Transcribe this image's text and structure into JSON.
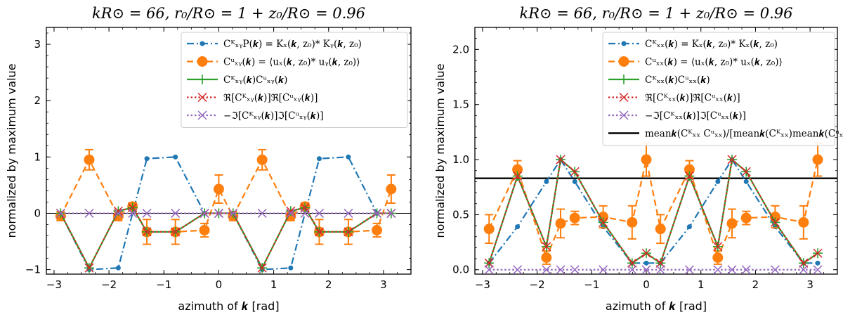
{
  "chart_data": [
    {
      "type": "line",
      "title": "kR⊙ = 66, r₀/R⊙ = 1 + z₀/R⊙ = 0.96",
      "xlabel": "azimuth of 𝒌 [rad]",
      "ylabel": "normalized by maximum value",
      "xlim": [
        -3.14,
        3.5
      ],
      "ylim": [
        -1.08,
        3.3
      ],
      "xticks": [
        -3,
        -2,
        -1,
        0,
        1,
        2,
        3
      ],
      "yticks": [
        -1,
        0,
        1,
        2,
        3
      ],
      "hline": 0,
      "legend": "top-right",
      "series": [
        {
          "name": "CᴷₓᵧP(𝒌) = Kₓ(𝒌, z₀)* Kᵧ(𝒌, z₀)",
          "color": "#1f77b4",
          "style": "dashdot",
          "marker": "dot",
          "x": [
            -2.88,
            -2.36,
            -1.83,
            -1.31,
            -0.79,
            -0.26,
            0.26,
            0.79,
            1.31,
            1.83,
            2.36,
            2.88
          ],
          "y": [
            0.0,
            -1.0,
            -0.97,
            0.97,
            1.0,
            0.0,
            0.0,
            -1.0,
            -0.97,
            0.97,
            1.0,
            0.0
          ]
        },
        {
          "name": "Cᵘₓᵧ(𝒌) = ⟨uₓ(𝒌, z₀)* uᵧ(𝒌, z₀)⟩",
          "color": "#ff7f0e",
          "style": "dashed",
          "marker": "bigdot",
          "x": [
            -2.88,
            -2.36,
            -1.83,
            -1.57,
            -1.31,
            -0.79,
            -0.26,
            0.0,
            0.26,
            0.79,
            1.31,
            1.57,
            1.83,
            2.36,
            2.88,
            3.14
          ],
          "y": [
            -0.05,
            0.95,
            -0.05,
            0.12,
            -0.33,
            -0.33,
            -0.3,
            0.43,
            -0.05,
            0.95,
            -0.05,
            0.12,
            -0.33,
            -0.33,
            -0.3,
            0.43
          ],
          "err": [
            0.08,
            0.18,
            0.08,
            0.07,
            0.22,
            0.22,
            0.12,
            0.25,
            0.08,
            0.18,
            0.08,
            0.07,
            0.22,
            0.22,
            0.12,
            0.25
          ]
        },
        {
          "name": "Cᴷₓᵧ(𝒌)Cᵘₓᵧ(𝒌)",
          "color": "#2ca02c",
          "style": "solid",
          "marker": "plus",
          "x": [
            -2.88,
            -2.36,
            -1.83,
            -1.57,
            -1.31,
            -0.79,
            -0.26,
            0.0,
            0.26,
            0.79,
            1.31,
            1.57,
            1.83,
            2.36,
            2.88,
            3.14
          ],
          "y": [
            0.0,
            -0.97,
            0.04,
            0.1,
            -0.33,
            -0.33,
            0.0,
            0.0,
            0.0,
            -0.97,
            0.04,
            0.1,
            -0.33,
            -0.33,
            0.0,
            0.0
          ]
        },
        {
          "name": "ℜ[Cᴷₓᵧ(𝒌)]ℜ[Cᵘₓᵧ(𝒌)]",
          "color": "#d62728",
          "style": "dotted",
          "marker": "x",
          "x": [
            -2.88,
            -2.36,
            -1.83,
            -1.57,
            -1.31,
            -0.79,
            -0.26,
            0.0,
            0.26,
            0.79,
            1.31,
            1.57,
            1.83,
            2.36,
            2.88,
            3.14
          ],
          "y": [
            0.0,
            -0.97,
            0.04,
            0.1,
            -0.33,
            -0.33,
            0.0,
            0.0,
            0.0,
            -0.97,
            0.04,
            0.1,
            -0.33,
            -0.33,
            0.0,
            0.0
          ]
        },
        {
          "name": "−ℑ[Cᴷₓᵧ(𝒌)]ℑ[Cᵘₓᵧ(𝒌)]",
          "color": "#9467bd",
          "style": "dotted",
          "marker": "x",
          "x": [
            -2.88,
            -2.36,
            -1.83,
            -1.57,
            -1.31,
            -0.79,
            -0.26,
            0.0,
            0.26,
            0.79,
            1.31,
            1.57,
            1.83,
            2.36,
            2.88,
            3.14
          ],
          "y": [
            0,
            0,
            0,
            0,
            0,
            0,
            0,
            0,
            0,
            0,
            0,
            0,
            0,
            0,
            0,
            0
          ]
        }
      ]
    },
    {
      "type": "line",
      "title": "kR⊙ = 66, r₀/R⊙ = 1 + z₀/R⊙ = 0.96",
      "xlabel": "azimuth of 𝒌 [rad]",
      "ylabel": "normalized by maximum value",
      "xlim": [
        -3.14,
        3.5
      ],
      "ylim": [
        -0.04,
        2.2
      ],
      "xticks": [
        -3,
        -2,
        -1,
        0,
        1,
        2,
        3
      ],
      "yticks": [
        0.0,
        0.5,
        1.0,
        1.5,
        2.0
      ],
      "hline": 0.83,
      "legend": "top-right",
      "series": [
        {
          "name": "Cᴷₓₓ(𝒌) = Kₓ(𝒌, z₀)* Kₓ(𝒌, z₀)",
          "color": "#1f77b4",
          "style": "dashdot",
          "marker": "dot",
          "x": [
            -2.88,
            -2.36,
            -1.83,
            -1.57,
            -1.31,
            -0.79,
            -0.26,
            0.0,
            0.26,
            0.79,
            1.31,
            1.57,
            1.83,
            2.36,
            2.88,
            3.14
          ],
          "y": [
            0.06,
            0.39,
            0.8,
            1.0,
            0.8,
            0.39,
            0.06,
            0.06,
            0.06,
            0.39,
            0.8,
            1.0,
            0.8,
            0.39,
            0.06,
            0.06
          ]
        },
        {
          "name": "Cᵘₓₓ(𝒌) = ⟨uₓ(𝒌, z₀)* uₓ(𝒌, z₀)⟩",
          "color": "#ff7f0e",
          "style": "dashed",
          "marker": "bigdot",
          "x": [
            -2.88,
            -2.36,
            -1.83,
            -1.57,
            -1.31,
            -0.79,
            -0.26,
            0.0,
            0.26,
            0.79,
            1.31,
            1.57,
            1.83,
            2.36,
            2.88,
            3.14
          ],
          "y": [
            0.37,
            0.91,
            0.11,
            0.42,
            0.47,
            0.48,
            0.43,
            1.0,
            0.37,
            0.91,
            0.11,
            0.42,
            0.47,
            0.48,
            0.43,
            1.0
          ],
          "err": [
            0.13,
            0.08,
            0.06,
            0.13,
            0.06,
            0.1,
            0.15,
            0.15,
            0.13,
            0.08,
            0.06,
            0.13,
            0.06,
            0.1,
            0.15,
            0.15
          ]
        },
        {
          "name": "Cᴷₓₓ(𝒌)Cᵘₓₓ(𝒌)",
          "color": "#2ca02c",
          "style": "solid",
          "marker": "plus",
          "x": [
            -2.88,
            -2.36,
            -1.83,
            -1.57,
            -1.31,
            -0.79,
            -0.26,
            0.0,
            0.26,
            0.79,
            1.31,
            1.57,
            1.83,
            2.36,
            2.88,
            3.14
          ],
          "y": [
            0.06,
            0.85,
            0.21,
            1.0,
            0.89,
            0.43,
            0.06,
            0.15,
            0.06,
            0.85,
            0.21,
            1.0,
            0.89,
            0.43,
            0.06,
            0.15
          ]
        },
        {
          "name": "ℜ[Cᴷₓₓ(𝒌)]ℜ[Cᵘₓₓ(𝒌)]",
          "color": "#d62728",
          "style": "dotted",
          "marker": "x",
          "x": [
            -2.88,
            -2.36,
            -1.83,
            -1.57,
            -1.31,
            -0.79,
            -0.26,
            0.0,
            0.26,
            0.79,
            1.31,
            1.57,
            1.83,
            2.36,
            2.88,
            3.14
          ],
          "y": [
            0.06,
            0.85,
            0.21,
            1.0,
            0.89,
            0.43,
            0.06,
            0.15,
            0.06,
            0.85,
            0.21,
            1.0,
            0.89,
            0.43,
            0.06,
            0.15
          ]
        },
        {
          "name": "−ℑ[Cᴷₓₓ(𝒌)]ℑ[Cᵘₓₓ(𝒌)]",
          "color": "#9467bd",
          "style": "dotted",
          "marker": "x",
          "x": [
            -2.88,
            -2.36,
            -1.83,
            -1.57,
            -1.31,
            -0.79,
            -0.26,
            0.0,
            0.26,
            0.79,
            1.31,
            1.57,
            1.83,
            2.36,
            2.88,
            3.14
          ],
          "y": [
            0,
            0,
            0,
            0,
            0,
            0,
            0,
            0,
            0,
            0,
            0,
            0,
            0,
            0,
            0,
            0
          ]
        },
        {
          "name": "mean𝒌(Cᴷₓₓ Cᵘₓₓ)/[mean𝒌(Cᴷₓₓ)mean𝒌(Cᵘₓₓ)]",
          "color": "#000000",
          "style": "hline",
          "marker": "none",
          "x": [],
          "y": []
        }
      ]
    }
  ]
}
